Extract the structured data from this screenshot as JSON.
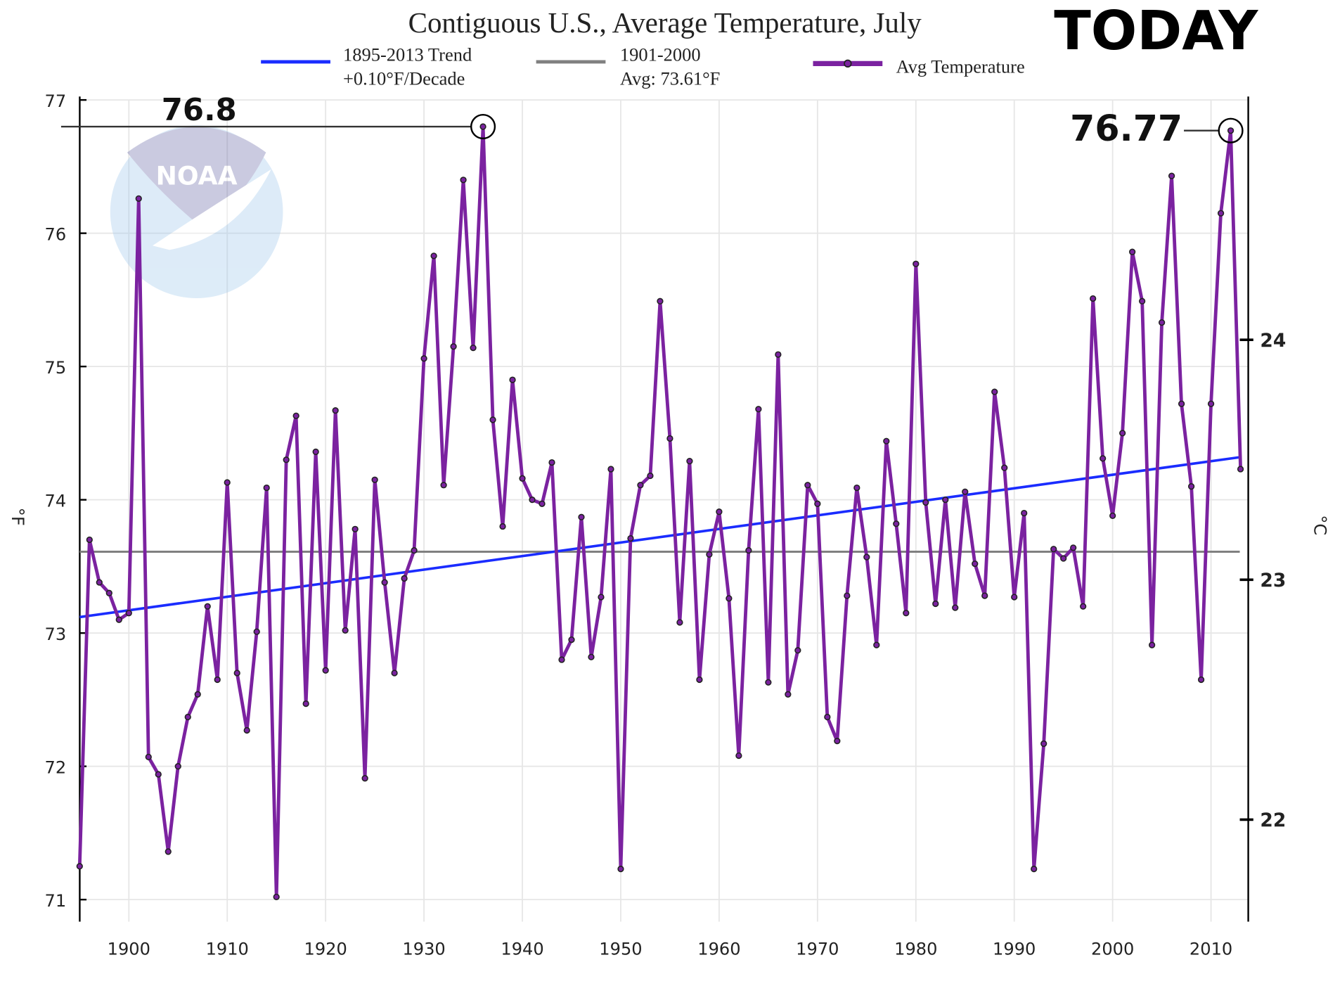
{
  "chart_data": {
    "type": "line",
    "title": "Contiguous U.S., Average Temperature, July",
    "banner": "TODAY",
    "ylabel": "°F",
    "ylabel_right": "°C",
    "xlim": [
      1895,
      2013
    ],
    "ylim": [
      71,
      77
    ],
    "x_ticks": [
      1900,
      1910,
      1920,
      1930,
      1940,
      1950,
      1960,
      1970,
      1980,
      1990,
      2000,
      2010
    ],
    "y_ticks": [
      71,
      72,
      73,
      74,
      75,
      76,
      77
    ],
    "y_ticks_right_c": [
      22,
      23,
      24
    ],
    "grid": true,
    "legend_position": "top",
    "legend": [
      {
        "line1": "1895-2013 Trend",
        "line2": "+0.10°F/Decade",
        "color": "#1a2cff"
      },
      {
        "line1": "1901-2000",
        "line2": "Avg: 73.61°F",
        "color": "#808080"
      },
      {
        "line1": "Avg Temperature",
        "line2": "",
        "color": "#7b22a0"
      }
    ],
    "trend": {
      "start_year": 1895,
      "start_value": 73.12,
      "end_year": 2013,
      "end_value": 74.32,
      "color": "#1a2cff"
    },
    "baseline": {
      "value": 73.61,
      "color": "#808080"
    },
    "series": [
      {
        "name": "Avg Temperature",
        "color": "#7b22a0",
        "start_year": 1895,
        "values": [
          71.25,
          73.7,
          73.38,
          73.3,
          73.1,
          73.15,
          76.26,
          72.07,
          71.94,
          71.36,
          72.0,
          72.37,
          72.54,
          73.2,
          72.65,
          74.13,
          72.7,
          72.27,
          73.01,
          74.09,
          71.02,
          74.3,
          74.63,
          72.47,
          74.36,
          72.72,
          74.67,
          73.02,
          73.78,
          71.91,
          74.15,
          73.38,
          72.7,
          73.41,
          73.62,
          75.06,
          75.83,
          74.11,
          75.15,
          76.4,
          75.14,
          76.8,
          74.6,
          73.8,
          74.9,
          74.16,
          74.0,
          73.97,
          74.28,
          72.8,
          72.95,
          73.87,
          72.82,
          73.27,
          74.23,
          71.23,
          73.71,
          74.11,
          74.18,
          75.49,
          74.46,
          73.08,
          74.29,
          72.65,
          73.59,
          73.91,
          73.26,
          72.08,
          73.62,
          74.68,
          72.63,
          75.09,
          72.54,
          72.87,
          74.11,
          73.97,
          72.37,
          72.19,
          73.28,
          74.09,
          73.57,
          72.91,
          74.44,
          73.82,
          73.15,
          75.77,
          73.98,
          73.22,
          74.0,
          73.19,
          74.06,
          73.52,
          73.28,
          74.81,
          74.24,
          73.27,
          73.9,
          71.23,
          72.17,
          73.63,
          73.56,
          73.64,
          73.2,
          75.51,
          74.31,
          73.88,
          74.5,
          75.86,
          75.49,
          72.91,
          75.33,
          76.43,
          74.72,
          74.1,
          72.65,
          74.72,
          76.15,
          76.77,
          74.23
        ]
      }
    ],
    "annotations": [
      {
        "year": 1936,
        "value": 76.8,
        "label": "76.8"
      },
      {
        "year": 2012,
        "value": 76.77,
        "label": "76.77"
      }
    ],
    "watermark": "NOAA"
  }
}
